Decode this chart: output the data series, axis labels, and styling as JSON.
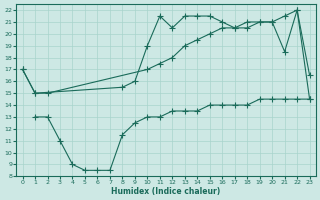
{
  "xlabel": "Humidex (Indice chaleur)",
  "bg_color": "#cde8e4",
  "line_color": "#1a6b5a",
  "grid_color": "#a8d4cc",
  "xlim": [
    -0.5,
    23.5
  ],
  "ylim": [
    8,
    22.5
  ],
  "xticks": [
    0,
    1,
    2,
    3,
    4,
    5,
    6,
    7,
    8,
    9,
    10,
    11,
    12,
    13,
    14,
    15,
    16,
    17,
    18,
    19,
    20,
    21,
    22,
    23
  ],
  "yticks": [
    8,
    9,
    10,
    11,
    12,
    13,
    14,
    15,
    16,
    17,
    18,
    19,
    20,
    21,
    22
  ],
  "line1_x": [
    0,
    1,
    2,
    10,
    11,
    12,
    13,
    14,
    15,
    16,
    17,
    18,
    19,
    20,
    21,
    22,
    23
  ],
  "line1_y": [
    17,
    15,
    15,
    17,
    17.5,
    18,
    19,
    19.5,
    20,
    20.5,
    20.5,
    21,
    21,
    21,
    21.5,
    22,
    14.5
  ],
  "line2_x": [
    0,
    1,
    8,
    9,
    10,
    11,
    12,
    13,
    14,
    15,
    16,
    17,
    18,
    19,
    20,
    21,
    22,
    23
  ],
  "line2_y": [
    17,
    15,
    15.5,
    16,
    19,
    21.5,
    20.5,
    21.5,
    21.5,
    21.5,
    21,
    20.5,
    20.5,
    21,
    21,
    18.5,
    22,
    16.5
  ],
  "line3_x": [
    1,
    2,
    3,
    4,
    5,
    6,
    7,
    8,
    9,
    10,
    11,
    12,
    13,
    14,
    15,
    16,
    17,
    18,
    19,
    20,
    21,
    22,
    23
  ],
  "line3_y": [
    13,
    13,
    11,
    9,
    8.5,
    8.5,
    8.5,
    11.5,
    12.5,
    13,
    13,
    13.5,
    13.5,
    13.5,
    14,
    14,
    14,
    14,
    14.5,
    14.5,
    14.5,
    14.5,
    14.5
  ]
}
